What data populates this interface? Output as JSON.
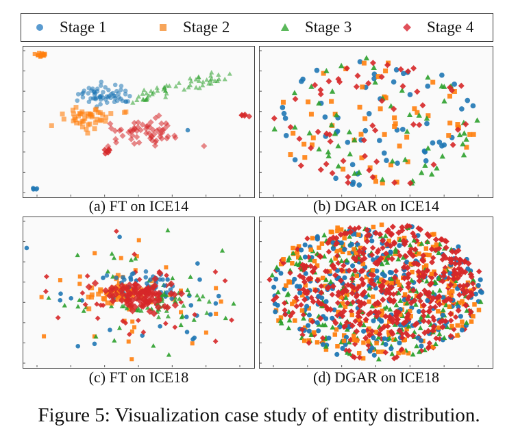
{
  "colors": {
    "stage1": "#1f77b4",
    "stage2": "#ff7f0e",
    "stage3": "#2ca02c",
    "stage4": "#d62728"
  },
  "legend": [
    {
      "label": "Stage 1",
      "marker": "circle"
    },
    {
      "label": "Stage 2",
      "marker": "square"
    },
    {
      "label": "Stage 3",
      "marker": "triangle"
    },
    {
      "label": "Stage 4",
      "marker": "diamond"
    }
  ],
  "caption": "Figure 5: Visualization case study of entity distribution.",
  "chart_data": [
    {
      "type": "scatter",
      "title": "(a) FT on ICE14",
      "series": [
        "Stage 1",
        "Stage 2",
        "Stage 3",
        "Stage 4"
      ]
    },
    {
      "type": "scatter",
      "title": "(b) DGAR on ICE14",
      "series": [
        "Stage 1",
        "Stage 2",
        "Stage 3",
        "Stage 4"
      ]
    },
    {
      "type": "scatter",
      "title": "(c) FT on ICE18",
      "series": [
        "Stage 1",
        "Stage 2",
        "Stage 3",
        "Stage 4"
      ]
    },
    {
      "type": "scatter",
      "title": "(d) DGAR on ICE18",
      "series": [
        "Stage 1",
        "Stage 2",
        "Stage 3",
        "Stage 4"
      ]
    }
  ]
}
